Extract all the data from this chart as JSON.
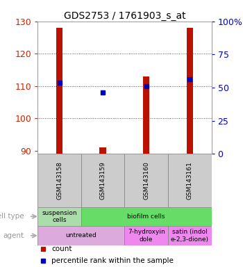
{
  "title": "GDS2753 / 1761903_s_at",
  "samples": [
    "GSM143158",
    "GSM143159",
    "GSM143160",
    "GSM143161"
  ],
  "bar_values": [
    128,
    91,
    113,
    128
  ],
  "blue_dot_values": [
    111,
    108,
    110,
    112
  ],
  "ylim": [
    89,
    130
  ],
  "left_yticks": [
    90,
    100,
    110,
    120,
    130
  ],
  "right_yticks": [
    0,
    25,
    50,
    75,
    100
  ],
  "right_yticklabels": [
    "0",
    "25",
    "50",
    "75",
    "100%"
  ],
  "bar_color": "#bb1100",
  "dot_color": "#0000bb",
  "bar_width": 0.15,
  "cell_type_row": [
    {
      "label": "suspension\ncells",
      "span": 1,
      "color": "#aaddaa"
    },
    {
      "label": "biofilm cells",
      "span": 3,
      "color": "#66dd66"
    }
  ],
  "agent_row": [
    {
      "label": "untreated",
      "span": 2,
      "color": "#ddaadd"
    },
    {
      "label": "7-hydroxyin\ndole",
      "span": 1,
      "color": "#ee88ee"
    },
    {
      "label": "satin (indol\ne-2,3-dione)",
      "span": 1,
      "color": "#ee88ee"
    }
  ],
  "legend_count_color": "#bb1100",
  "legend_dot_color": "#0000bb",
  "grid_color": "#555555",
  "left_tick_color": "#cc2200",
  "right_tick_color": "#0000cc",
  "sample_bg_color": "#cccccc",
  "sample_border_color": "#888888"
}
